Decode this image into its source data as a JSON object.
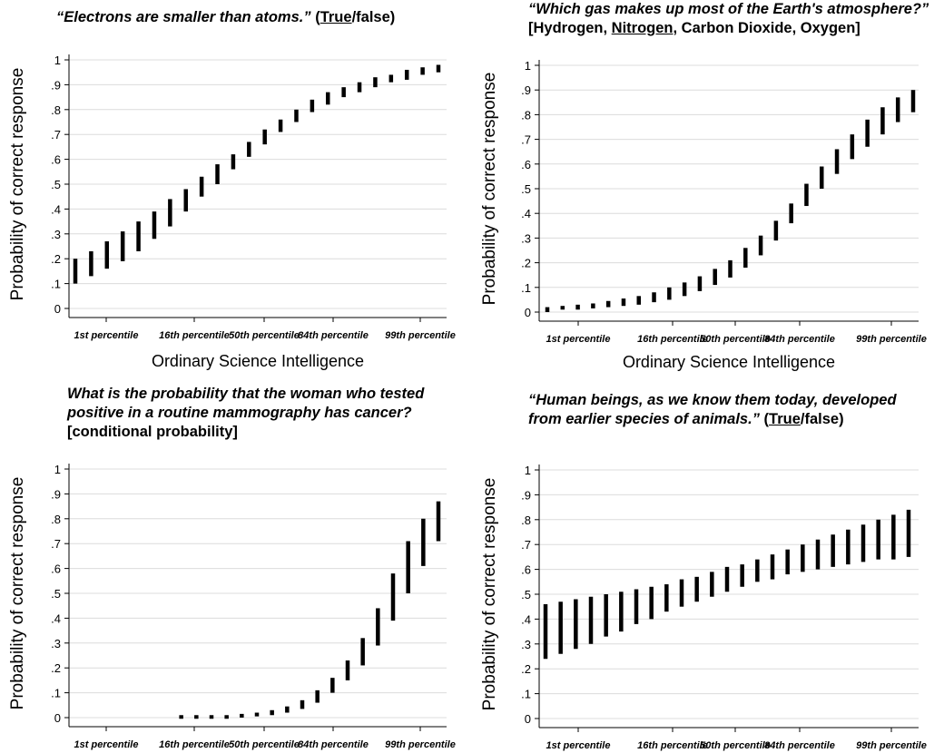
{
  "figure": {
    "y_axis_label": "Probability of correct response",
    "x_axis_label": "Ordinary Science Intelligence"
  },
  "chart_data": [
    {
      "type": "range-bar",
      "title_parts": [
        {
          "text": "“Electrons are smaller than atoms.”",
          "style": "q"
        },
        {
          "text": " (",
          "style": ""
        },
        {
          "text": "True",
          "style": "u"
        },
        {
          "text": "/false)",
          "style": ""
        }
      ],
      "title_lines": [],
      "ylabel": "Probability of correct response",
      "xlabel": "Ordinary Science Intelligence",
      "ylim": [
        0,
        1
      ],
      "yticks": [
        "0",
        ".1",
        ".2",
        ".3",
        ".4",
        ".5",
        ".6",
        ".7",
        ".8",
        ".9",
        "1"
      ],
      "xticks": [
        "1st percentile",
        "16th percentile",
        "50th percentile",
        "84th percentile",
        "99th percentile"
      ],
      "grid": true,
      "ranges": [
        [
          0.1,
          0.2
        ],
        [
          0.13,
          0.23
        ],
        [
          0.16,
          0.27
        ],
        [
          0.19,
          0.31
        ],
        [
          0.23,
          0.35
        ],
        [
          0.28,
          0.39
        ],
        [
          0.33,
          0.44
        ],
        [
          0.39,
          0.48
        ],
        [
          0.45,
          0.53
        ],
        [
          0.5,
          0.58
        ],
        [
          0.56,
          0.62
        ],
        [
          0.61,
          0.67
        ],
        [
          0.66,
          0.72
        ],
        [
          0.71,
          0.76
        ],
        [
          0.75,
          0.8
        ],
        [
          0.79,
          0.84
        ],
        [
          0.82,
          0.87
        ],
        [
          0.85,
          0.89
        ],
        [
          0.87,
          0.91
        ],
        [
          0.89,
          0.93
        ],
        [
          0.91,
          0.94
        ],
        [
          0.92,
          0.96
        ],
        [
          0.94,
          0.97
        ],
        [
          0.95,
          0.98
        ]
      ]
    },
    {
      "type": "range-bar",
      "title_parts": [],
      "title_lines": [
        [
          {
            "text": "“Which gas makes up most of the Earth's atmosphere?”",
            "style": "q"
          }
        ],
        [
          {
            "text": "[Hydrogen, ",
            "style": ""
          },
          {
            "text": "Nitrogen",
            "style": "u"
          },
          {
            "text": ", Carbon Dioxide, Oxygen]",
            "style": ""
          }
        ]
      ],
      "ylabel": "Probability of correct response",
      "xlabel": "Ordinary Science Intelligence",
      "ylim": [
        0,
        1
      ],
      "yticks": [
        "0",
        ".1",
        ".2",
        ".3",
        ".4",
        ".5",
        ".6",
        ".7",
        ".8",
        ".9",
        "1"
      ],
      "xticks": [
        "1st percentile",
        "16th percentile",
        "50th percentile",
        "84th percentile",
        "99th percentile"
      ],
      "grid": true,
      "ranges": [
        [
          0.0,
          0.02
        ],
        [
          0.01,
          0.025
        ],
        [
          0.01,
          0.03
        ],
        [
          0.015,
          0.035
        ],
        [
          0.02,
          0.045
        ],
        [
          0.025,
          0.055
        ],
        [
          0.03,
          0.065
        ],
        [
          0.04,
          0.08
        ],
        [
          0.05,
          0.1
        ],
        [
          0.065,
          0.12
        ],
        [
          0.085,
          0.145
        ],
        [
          0.11,
          0.175
        ],
        [
          0.14,
          0.21
        ],
        [
          0.18,
          0.26
        ],
        [
          0.23,
          0.31
        ],
        [
          0.29,
          0.37
        ],
        [
          0.36,
          0.44
        ],
        [
          0.43,
          0.52
        ],
        [
          0.5,
          0.59
        ],
        [
          0.56,
          0.66
        ],
        [
          0.62,
          0.72
        ],
        [
          0.67,
          0.78
        ],
        [
          0.72,
          0.83
        ],
        [
          0.77,
          0.87
        ],
        [
          0.81,
          0.9
        ]
      ]
    },
    {
      "type": "range-bar",
      "title_parts": [],
      "title_lines": [
        [
          {
            "text": "What is the probability that the woman who tested",
            "style": "q"
          }
        ],
        [
          {
            "text": "positive in a routine mammography has cancer?",
            "style": "q"
          }
        ],
        [
          {
            "text": "[conditional probability]",
            "style": ""
          }
        ]
      ],
      "ylabel": "Probability of correct response",
      "xlabel": "",
      "ylim": [
        0,
        1
      ],
      "yticks": [
        "0",
        ".1",
        ".2",
        ".3",
        ".4",
        ".5",
        ".6",
        ".7",
        ".8",
        ".9",
        "1"
      ],
      "xticks": [
        "1st percentile",
        "16th percentile",
        "50th percentile",
        "84th percentile",
        "99th percentile"
      ],
      "grid": true,
      "ranges": [
        null,
        null,
        null,
        null,
        null,
        null,
        null,
        [
          0.0,
          0.01
        ],
        [
          0.0,
          0.01
        ],
        [
          0.0,
          0.01
        ],
        [
          0.0,
          0.01
        ],
        [
          0.0,
          0.015
        ],
        [
          0.005,
          0.02
        ],
        [
          0.01,
          0.03
        ],
        [
          0.02,
          0.045
        ],
        [
          0.035,
          0.07
        ],
        [
          0.06,
          0.11
        ],
        [
          0.1,
          0.16
        ],
        [
          0.15,
          0.23
        ],
        [
          0.21,
          0.32
        ],
        [
          0.29,
          0.44
        ],
        [
          0.39,
          0.58
        ],
        [
          0.5,
          0.71
        ],
        [
          0.61,
          0.8
        ],
        [
          0.71,
          0.87
        ]
      ]
    },
    {
      "type": "range-bar",
      "title_parts": [],
      "title_lines": [
        [
          {
            "text": "“Human beings, as we know them today, developed",
            "style": "q"
          }
        ],
        [
          {
            "text": "from earlier species of animals.”",
            "style": "q"
          },
          {
            "text": " (",
            "style": ""
          },
          {
            "text": "True",
            "style": "u"
          },
          {
            "text": "/false)",
            "style": ""
          }
        ]
      ],
      "ylabel": "Probability of correct response",
      "xlabel": "",
      "ylim": [
        0,
        1
      ],
      "yticks": [
        "0",
        ".1",
        ".2",
        ".3",
        ".4",
        ".5",
        ".6",
        ".7",
        ".8",
        ".9",
        "1"
      ],
      "xticks": [
        "1st percentile",
        "16th percentile",
        "50th percentile",
        "84th percentile",
        "99th percentile"
      ],
      "grid": true,
      "ranges": [
        [
          0.24,
          0.46
        ],
        [
          0.26,
          0.47
        ],
        [
          0.28,
          0.48
        ],
        [
          0.3,
          0.49
        ],
        [
          0.33,
          0.5
        ],
        [
          0.35,
          0.51
        ],
        [
          0.38,
          0.52
        ],
        [
          0.4,
          0.53
        ],
        [
          0.43,
          0.54
        ],
        [
          0.45,
          0.56
        ],
        [
          0.47,
          0.57
        ],
        [
          0.49,
          0.59
        ],
        [
          0.51,
          0.61
        ],
        [
          0.53,
          0.62
        ],
        [
          0.55,
          0.64
        ],
        [
          0.56,
          0.66
        ],
        [
          0.58,
          0.68
        ],
        [
          0.59,
          0.7
        ],
        [
          0.6,
          0.72
        ],
        [
          0.61,
          0.74
        ],
        [
          0.62,
          0.76
        ],
        [
          0.63,
          0.78
        ],
        [
          0.64,
          0.8
        ],
        [
          0.64,
          0.82
        ],
        [
          0.65,
          0.84
        ]
      ]
    }
  ]
}
